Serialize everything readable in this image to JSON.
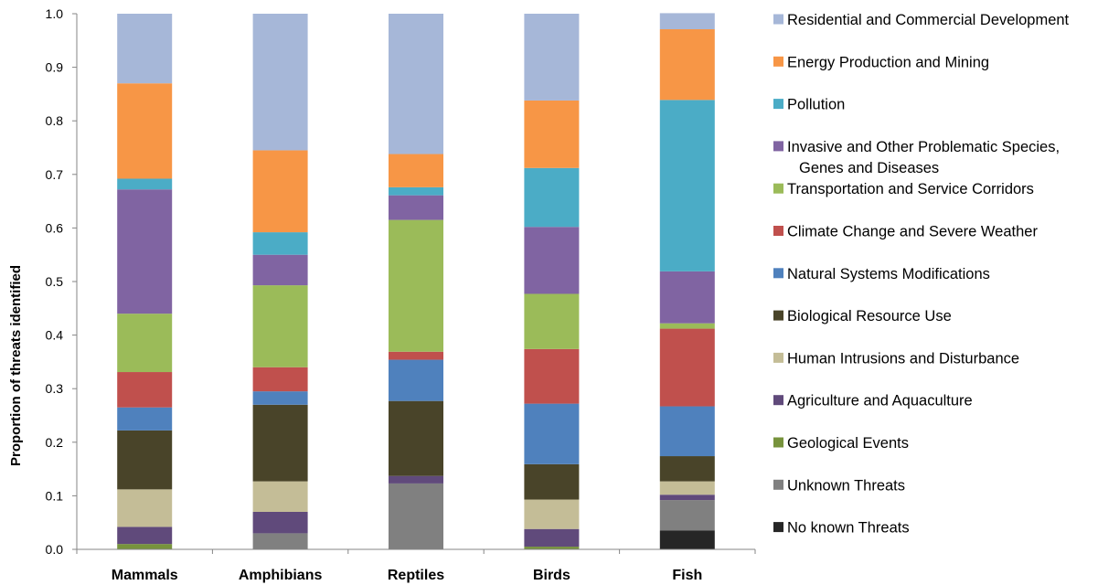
{
  "chart_data": {
    "type": "bar",
    "stacked": true,
    "title": "",
    "xlabel": "",
    "ylabel": "Proportion of threats identified",
    "ylim": [
      0,
      1.0
    ],
    "yticks": [
      "0.0",
      "0.1",
      "0.2",
      "0.3",
      "0.4",
      "0.5",
      "0.6",
      "0.7",
      "0.8",
      "0.9",
      "1.0"
    ],
    "grid": false,
    "legend_position": "right",
    "categories": [
      "Mammals",
      "Amphibians",
      "Reptiles",
      "Birds",
      "Fish"
    ],
    "series": [
      {
        "name": "No known Threats",
        "color": "#262626",
        "values": [
          0,
          0,
          0,
          0,
          0.035
        ]
      },
      {
        "name": "Unknown Threats",
        "color": "#808080",
        "values": [
          0,
          0.03,
          0.123,
          0,
          0.057
        ]
      },
      {
        "name": "Geological Events",
        "color": "#77933c",
        "values": [
          0.01,
          0,
          0,
          0.005,
          0
        ]
      },
      {
        "name": "Agriculture and Aquaculture",
        "color": "#604a7b",
        "values": [
          0.032,
          0.04,
          0.014,
          0.033,
          0.01
        ]
      },
      {
        "name": "Human Intrusions and Disturbance",
        "color": "#c4bd97",
        "values": [
          0.07,
          0.057,
          0,
          0.055,
          0.025
        ]
      },
      {
        "name": "Biological Resource Use",
        "color": "#494429",
        "values": [
          0.11,
          0.143,
          0.14,
          0.066,
          0.047
        ]
      },
      {
        "name": "Natural Systems Modifications",
        "color": "#4f81bd",
        "values": [
          0.043,
          0.025,
          0.077,
          0.113,
          0.093
        ]
      },
      {
        "name": "Climate Change and Severe Weather",
        "color": "#c0504d",
        "values": [
          0.066,
          0.045,
          0.015,
          0.102,
          0.145
        ]
      },
      {
        "name": "Transportation and Service Corridors",
        "color": "#9bbb59",
        "values": [
          0.109,
          0.153,
          0.246,
          0.103,
          0.01
        ]
      },
      {
        "name": "Invasive and Other Problematic Species, Genes and Diseases",
        "legend_lines": [
          "Invasive and Other Problematic Species,",
          "Genes and Diseases"
        ],
        "color": "#8064a2",
        "values": [
          0.232,
          0.057,
          0.046,
          0.125,
          0.097
        ]
      },
      {
        "name": "Pollution",
        "color": "#4bacc6",
        "values": [
          0.02,
          0.042,
          0.015,
          0.11,
          0.32
        ]
      },
      {
        "name": "Energy Production and Mining",
        "color": "#f79646",
        "values": [
          0.178,
          0.153,
          0.062,
          0.126,
          0.132
        ]
      },
      {
        "name": "Residential and Commercial Development",
        "color": "#a6b7d8",
        "values": [
          0.13,
          0.255,
          0.262,
          0.162,
          0.03
        ]
      }
    ]
  }
}
